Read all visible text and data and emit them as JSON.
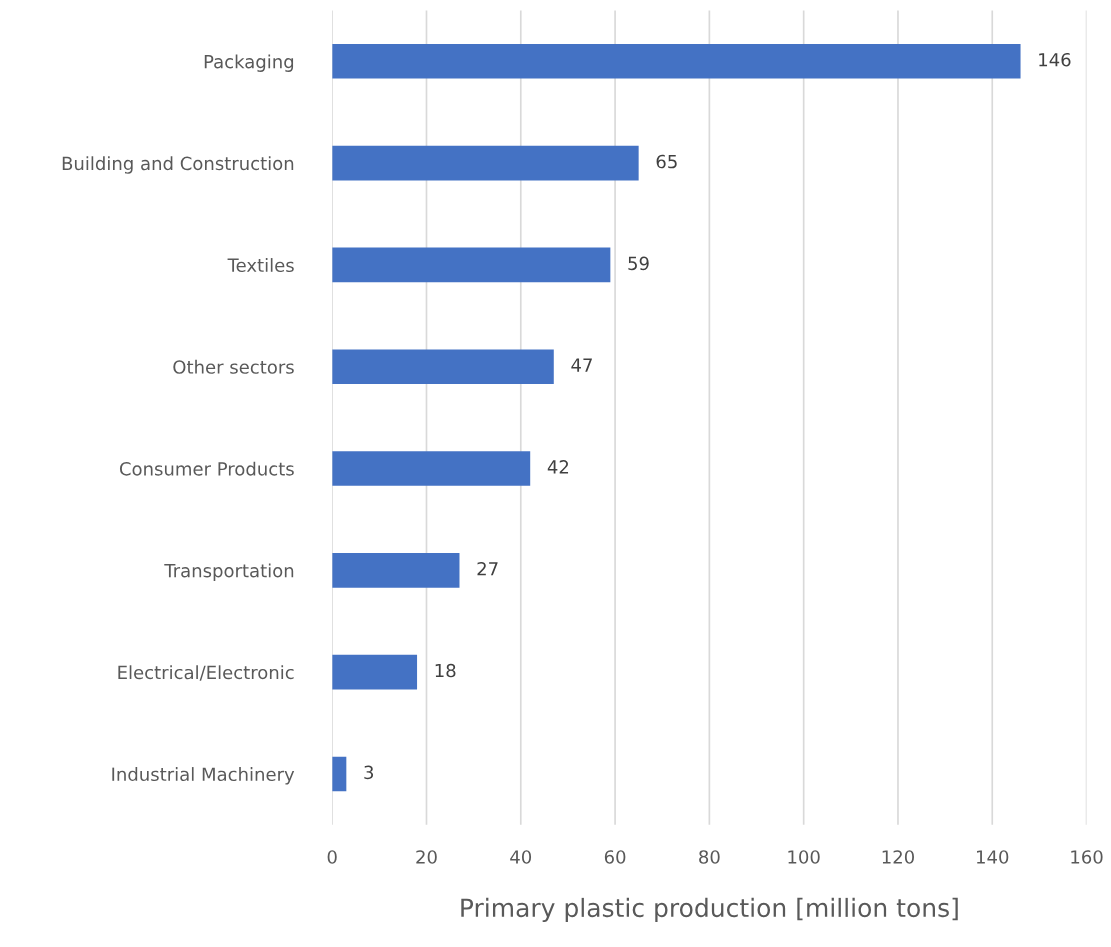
{
  "chart_data": {
    "type": "bar",
    "orientation": "horizontal",
    "xlabel": "Primary plastic production [million tons]",
    "categories": [
      "Packaging",
      "Building and Construction",
      "Textiles",
      "Other sectors",
      "Consumer Products",
      "Transportation",
      "Electrical/Electronic",
      "Industrial Machinery"
    ],
    "values": [
      146,
      65,
      59,
      47,
      42,
      27,
      18,
      3
    ],
    "color": "#4472c4",
    "xlim": [
      0,
      160
    ],
    "xticks": [
      0,
      20,
      40,
      60,
      80,
      100,
      120,
      140,
      160
    ],
    "grid": "x",
    "data_labels": true,
    "legend": false
  }
}
